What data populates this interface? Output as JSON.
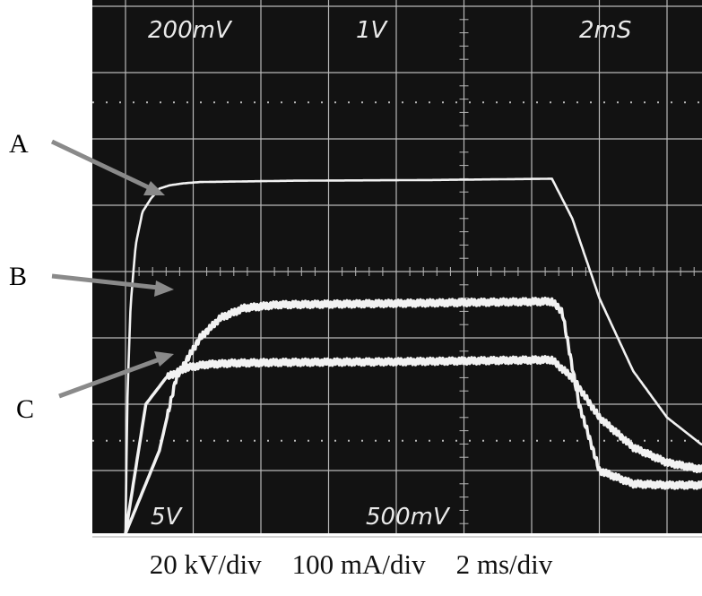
{
  "chart_data": {
    "type": "line",
    "title": "",
    "screen_labels": {
      "top_left": "200mV",
      "top_center": "1V",
      "top_right": "2mS",
      "bottom_left": "5V",
      "bottom_center": "500mV"
    },
    "caption": [
      "20 kV/div",
      "100 mA/div",
      "2 ms/div"
    ],
    "grid": {
      "divisions_x": 10,
      "divisions_y": 8,
      "grid": true
    },
    "xlim": [
      0,
      20
    ],
    "ylim": [
      -4,
      4
    ],
    "series": [
      {
        "name": "A",
        "ripple": 0,
        "x": [
          0,
          0.05,
          0.15,
          0.3,
          0.5,
          0.75,
          1.0,
          1.3,
          1.7,
          2.2,
          5,
          9,
          12.6,
          13.2,
          14,
          15,
          16,
          17,
          18,
          19,
          20
        ],
        "y": [
          -3.95,
          -2.0,
          -0.5,
          0.4,
          0.9,
          1.1,
          1.25,
          1.3,
          1.33,
          1.35,
          1.37,
          1.38,
          1.4,
          0.8,
          -0.4,
          -1.5,
          -2.2,
          -2.6,
          -2.8,
          -2.9,
          -2.95
        ]
      },
      {
        "name": "B",
        "ripple": 0.05,
        "x": [
          0,
          1.0,
          1.5,
          2.2,
          2.8,
          3.5,
          4.5,
          8,
          12.6,
          12.9,
          13.4,
          14,
          15,
          16,
          20
        ],
        "y": [
          -3.95,
          -2.7,
          -1.6,
          -1.0,
          -0.7,
          -0.55,
          -0.5,
          -0.48,
          -0.45,
          -0.6,
          -2.0,
          -3.0,
          -3.2,
          -3.22,
          -3.22
        ]
      },
      {
        "name": "C",
        "ripple": 0.05,
        "x": [
          0,
          0.6,
          1.2,
          1.8,
          2.4,
          3.2,
          4.5,
          8,
          12.6,
          13.2,
          14,
          15,
          16,
          17,
          18,
          19,
          20
        ],
        "y": [
          -3.95,
          -2.0,
          -1.6,
          -1.45,
          -1.4,
          -1.38,
          -1.37,
          -1.36,
          -1.33,
          -1.6,
          -2.2,
          -2.65,
          -2.88,
          -2.98,
          -3.05,
          -3.08,
          -3.1
        ]
      }
    ],
    "annotations": [
      "A",
      "B",
      "C"
    ]
  }
}
